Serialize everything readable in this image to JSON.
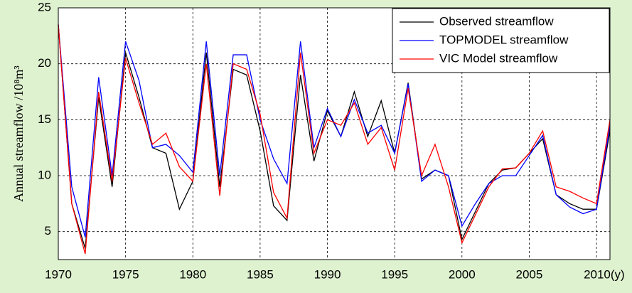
{
  "chart_data": {
    "type": "line",
    "y_label": "Annual streamflow /10⁸m³",
    "x": [
      1970,
      1971,
      1972,
      1973,
      1974,
      1975,
      1976,
      1977,
      1978,
      1979,
      1980,
      1981,
      1982,
      1983,
      1984,
      1985,
      1986,
      1987,
      1988,
      1989,
      1990,
      1991,
      1992,
      1993,
      1994,
      1995,
      1996,
      1997,
      1998,
      1999,
      2000,
      2001,
      2002,
      2003,
      2004,
      2005,
      2006,
      2007,
      2008,
      2009,
      2010,
      2011
    ],
    "series": [
      {
        "name": "Observed streamflow",
        "color": "#000000",
        "values": [
          23.5,
          7.5,
          3.5,
          17,
          9,
          21,
          17,
          12.5,
          12,
          7,
          9.5,
          21,
          9,
          19.5,
          19,
          14,
          7.3,
          6,
          19,
          11.3,
          15.8,
          13.5,
          17.5,
          13.5,
          16.7,
          12,
          18.3,
          9.7,
          10.5,
          10,
          4.3,
          6.8,
          9.3,
          10.5,
          10.7,
          12,
          13.3,
          8.3,
          7.5,
          7,
          7,
          14
        ]
      },
      {
        "name": "TOPMODEL streamflow",
        "color": "#0000ff",
        "values": [
          23.5,
          9,
          4.5,
          18.8,
          10,
          22,
          18.5,
          12.5,
          12.8,
          11.8,
          10.3,
          22,
          10,
          20.8,
          20.8,
          15,
          11.5,
          9.3,
          22,
          12.5,
          16,
          13.5,
          16.8,
          13.8,
          14.5,
          12,
          18.2,
          9.5,
          10.5,
          10,
          5.5,
          7.5,
          9.3,
          10,
          10,
          11.8,
          13.6,
          8.3,
          7.2,
          6.6,
          7,
          14.5
        ]
      },
      {
        "name": "VIC Model streamflow",
        "color": "#ff0000",
        "values": [
          23.5,
          7.5,
          3,
          17.5,
          9.5,
          20.5,
          16.5,
          12.8,
          13.8,
          10.8,
          9.5,
          20,
          8.2,
          20,
          19.5,
          15.5,
          8.5,
          6.2,
          21,
          12,
          15,
          14.5,
          16.5,
          12.8,
          14.3,
          10.5,
          17.8,
          10,
          12.8,
          9,
          4,
          6.5,
          9,
          10.6,
          10.7,
          12,
          14,
          9,
          8.6,
          8,
          7.5,
          15
        ]
      }
    ],
    "xlim": [
      1970,
      2011
    ],
    "xticks": [
      1970,
      1975,
      1980,
      1985,
      1990,
      1995,
      2000,
      2005,
      {
        "value": 2010,
        "label": "2010(y)"
      }
    ],
    "ylim": [
      2.5,
      25
    ],
    "yticks": [
      5,
      10,
      15,
      20,
      25
    ],
    "grid": true,
    "legend": "upper right"
  }
}
